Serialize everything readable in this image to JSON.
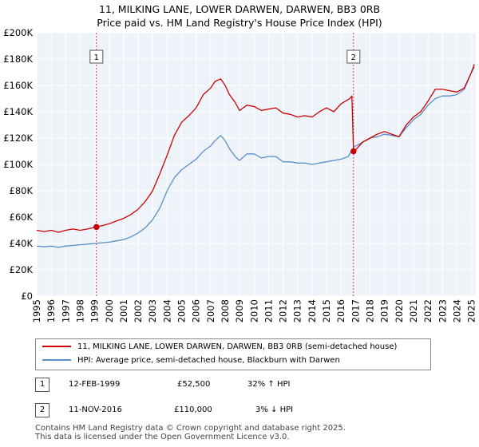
{
  "title_line1": "11, MILKING LANE, LOWER DARWEN, DARWEN, BB3 0RB",
  "title_line2": "Price paid vs. HM Land Registry's House Price Index (HPI)",
  "legend": {
    "property": "11, MILKING LANE, LOWER DARWEN, DARWEN, BB3 0RB (semi-detached house)",
    "hpi": "HPI: Average price, semi-detached house, Blackburn with Darwen"
  },
  "colors": {
    "property": "#cc0000",
    "hpi": "#5b8fc9",
    "grid": "#dddddd",
    "plot_bg": "#eef3fa",
    "marker_line": "#dd4444"
  },
  "transactions": [
    {
      "num": "1",
      "date": "12-FEB-1999",
      "price": "£52,500",
      "hpi_diff": "32% ↑ HPI"
    },
    {
      "num": "2",
      "date": "11-NOV-2016",
      "price": "£110,000",
      "hpi_diff": "3% ↓ HPI"
    }
  ],
  "footer": {
    "line1": "Contains HM Land Registry data © Crown copyright and database right 2025.",
    "line2": "This data is licensed under the Open Government Licence v3.0."
  },
  "chart_data": {
    "type": "line",
    "title": "11, MILKING LANE, LOWER DARWEN, DARWEN, BB3 0RB",
    "subtitle": "Price paid vs. HM Land Registry's House Price Index (HPI)",
    "xlim": [
      1995,
      2025.3
    ],
    "ylim": [
      0,
      200000
    ],
    "x_ticks": [
      1995,
      1996,
      1997,
      1998,
      1999,
      2000,
      2001,
      2002,
      2003,
      2004,
      2005,
      2006,
      2007,
      2008,
      2009,
      2010,
      2011,
      2012,
      2013,
      2014,
      2015,
      2016,
      2017,
      2018,
      2019,
      2020,
      2021,
      2022,
      2023,
      2024,
      2025
    ],
    "y_ticks": [
      0,
      20000,
      40000,
      60000,
      80000,
      100000,
      120000,
      140000,
      160000,
      180000,
      200000
    ],
    "y_tick_labels": [
      "£0",
      "£20K",
      "£40K",
      "£60K",
      "£80K",
      "£100K",
      "£120K",
      "£140K",
      "£160K",
      "£180K",
      "£200K"
    ],
    "grid": true,
    "markers": [
      {
        "label": "1",
        "x": 1999.12,
        "y": 52500
      },
      {
        "label": "2",
        "x": 2016.86,
        "y": 110000
      }
    ],
    "series": [
      {
        "name": "11, MILKING LANE, LOWER DARWEN, DARWEN, BB3 0RB (semi-detached house)",
        "x": [
          1995,
          1995.5,
          1996,
          1996.5,
          1997,
          1997.5,
          1998,
          1998.5,
          1999.12,
          1999.5,
          2000,
          2000.5,
          2001,
          2001.5,
          2002,
          2002.5,
          2003,
          2003.5,
          2004,
          2004.5,
          2005,
          2005.5,
          2006,
          2006.5,
          2007,
          2007.3,
          2007.7,
          2008,
          2008.3,
          2008.7,
          2009,
          2009.5,
          2010,
          2010.5,
          2011,
          2011.5,
          2012,
          2012.5,
          2013,
          2013.5,
          2014,
          2014.5,
          2015,
          2015.5,
          2016,
          2016.3,
          2016.6,
          2016.75,
          2016.86,
          2017,
          2017.5,
          2018,
          2018.5,
          2019,
          2019.5,
          2020,
          2020.5,
          2021,
          2021.5,
          2022,
          2022.5,
          2023,
          2023.5,
          2024,
          2024.5,
          2025,
          2025.2
        ],
        "values": [
          50000,
          49000,
          50000,
          48500,
          50000,
          51000,
          50000,
          51000,
          52500,
          53500,
          55000,
          57000,
          59000,
          62000,
          66000,
          72000,
          80000,
          93000,
          107000,
          122000,
          132000,
          137000,
          143000,
          153000,
          158000,
          163000,
          165000,
          160000,
          153000,
          147000,
          141000,
          145000,
          144000,
          141000,
          142000,
          143000,
          139000,
          138000,
          136000,
          137000,
          136000,
          140000,
          143000,
          140000,
          146000,
          148000,
          150000,
          152000,
          110000,
          111000,
          117000,
          120000,
          123000,
          125000,
          123000,
          121000,
          130000,
          136000,
          140000,
          148000,
          157000,
          157000,
          156000,
          155000,
          158000,
          170000,
          176000
        ]
      },
      {
        "name": "HPI: Average price, semi-detached house, Blackburn with Darwen",
        "x": [
          1995,
          1995.5,
          1996,
          1996.5,
          1997,
          1997.5,
          1998,
          1998.5,
          1999,
          1999.5,
          2000,
          2000.5,
          2001,
          2001.5,
          2002,
          2002.5,
          2003,
          2003.5,
          2004,
          2004.5,
          2005,
          2005.5,
          2006,
          2006.5,
          2007,
          2007.3,
          2007.7,
          2008,
          2008.3,
          2008.7,
          2009,
          2009.5,
          2010,
          2010.5,
          2011,
          2011.5,
          2012,
          2012.5,
          2013,
          2013.5,
          2014,
          2014.5,
          2015,
          2015.5,
          2016,
          2016.5,
          2016.86,
          2017,
          2017.5,
          2018,
          2018.5,
          2019,
          2019.5,
          2020,
          2020.5,
          2021,
          2021.5,
          2022,
          2022.5,
          2023,
          2023.5,
          2024,
          2024.5,
          2025,
          2025.2
        ],
        "values": [
          38000,
          37500,
          38000,
          37000,
          38000,
          38500,
          39000,
          39500,
          40000,
          40500,
          41000,
          42000,
          43000,
          45000,
          48000,
          52000,
          58000,
          67000,
          80000,
          90000,
          96000,
          100000,
          104000,
          110000,
          114000,
          118000,
          122000,
          118000,
          112000,
          106000,
          103000,
          108000,
          108000,
          105000,
          106000,
          106000,
          102000,
          102000,
          101000,
          101000,
          100000,
          101000,
          102000,
          103000,
          104000,
          106000,
          113000,
          114000,
          117000,
          120000,
          121000,
          123000,
          122000,
          121000,
          128000,
          134000,
          138000,
          145000,
          150000,
          152000,
          152000,
          153000,
          157000,
          170000,
          174000
        ]
      }
    ]
  }
}
